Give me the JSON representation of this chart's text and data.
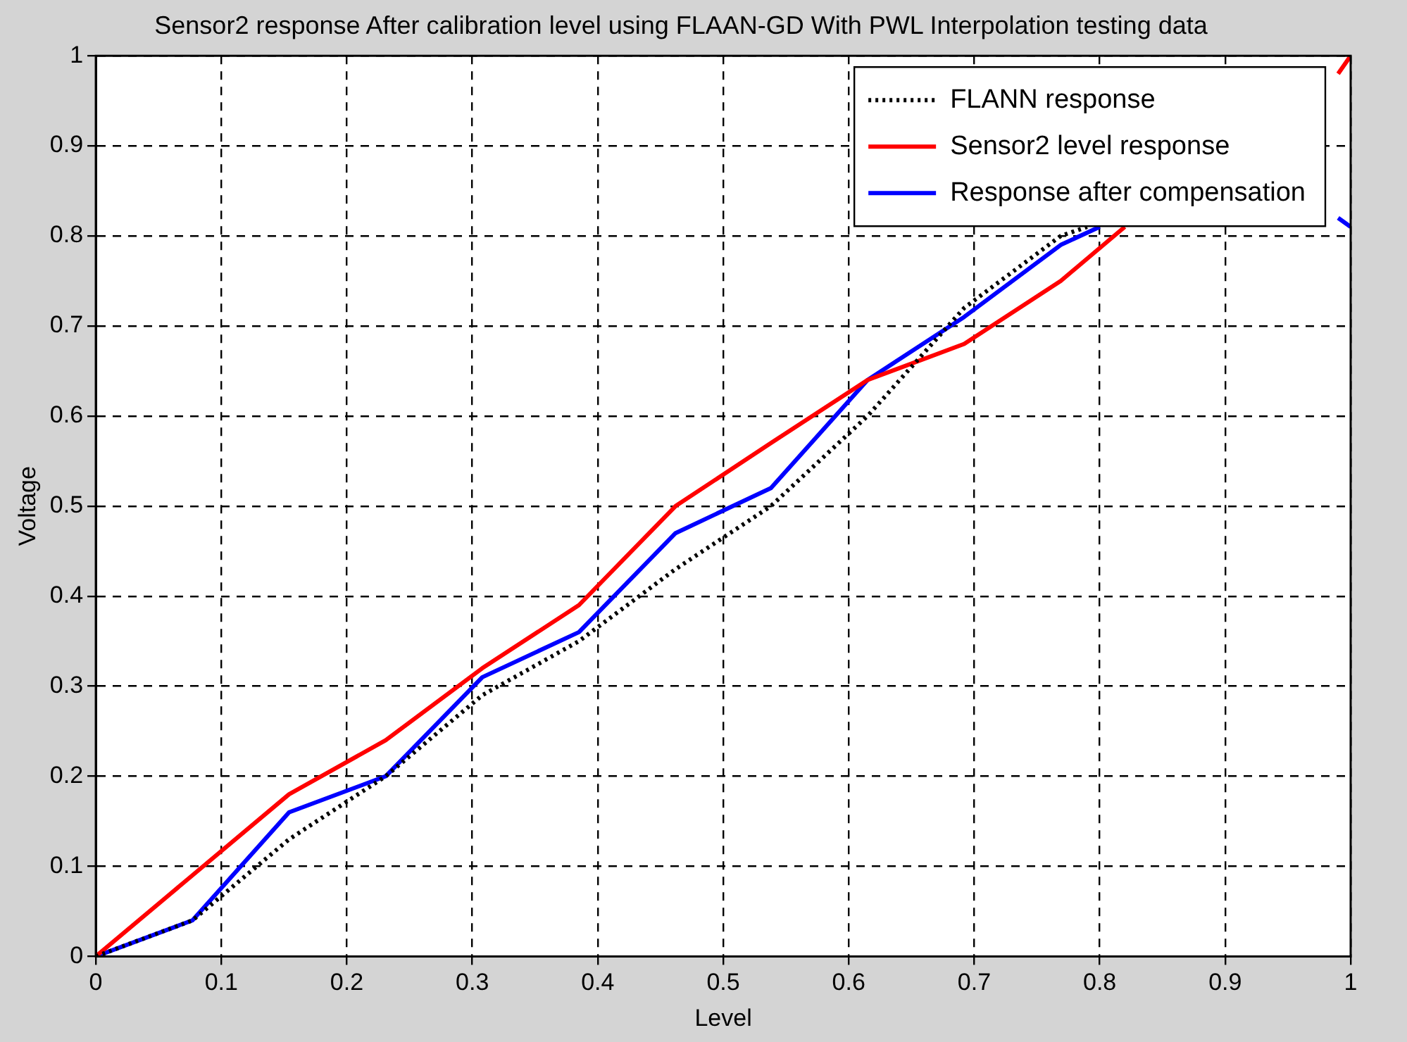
{
  "chart_data": {
    "type": "line",
    "title": "Sensor2 response After calibration level using FLAAN-GD With PWL Interpolation testing data",
    "xlabel": "Level",
    "ylabel": "Voltage",
    "series": [
      {
        "name": "FLANN response",
        "color": "#000000",
        "line_style": "dotted",
        "x": [
          0,
          0.077,
          0.154,
          0.231,
          0.308,
          0.385,
          0.462,
          0.538,
          0.615,
          0.692,
          0.769,
          0.79
        ],
        "values": [
          0,
          0.04,
          0.13,
          0.2,
          0.29,
          0.35,
          0.43,
          0.5,
          0.6,
          0.72,
          0.8,
          0.81
        ]
      },
      {
        "name": "Sensor2 level response",
        "color": "#ff0000",
        "line_style": "solid",
        "x": [
          0,
          0.077,
          0.154,
          0.231,
          0.308,
          0.385,
          0.462,
          0.538,
          0.615,
          0.692,
          0.769,
          0.82,
          null,
          0.99,
          1
        ],
        "values": [
          0,
          0.09,
          0.18,
          0.24,
          0.32,
          0.39,
          0.5,
          0.57,
          0.64,
          0.68,
          0.75,
          0.81,
          null,
          0.98,
          1
        ]
      },
      {
        "name": "Response after compensation",
        "color": "#0000ff",
        "line_style": "solid",
        "x": [
          0,
          0.077,
          0.154,
          0.231,
          0.308,
          0.385,
          0.462,
          0.538,
          0.615,
          0.692,
          0.769,
          0.8,
          null,
          0.99,
          1
        ],
        "values": [
          0,
          0.04,
          0.16,
          0.2,
          0.31,
          0.36,
          0.47,
          0.52,
          0.64,
          0.71,
          0.79,
          0.81,
          null,
          0.82,
          0.81
        ]
      }
    ],
    "xlim": [
      0,
      1
    ],
    "xticks": [
      0,
      0.1,
      0.2,
      0.3,
      0.4,
      0.5,
      0.6,
      0.7,
      0.8,
      0.9,
      1
    ],
    "ylim": [
      0,
      1
    ],
    "yticks": [
      0,
      0.1,
      0.2,
      0.3,
      0.4,
      0.5,
      0.6,
      0.7,
      0.8,
      0.9,
      1
    ],
    "grid": true,
    "legend": "top right",
    "marker": "none"
  }
}
